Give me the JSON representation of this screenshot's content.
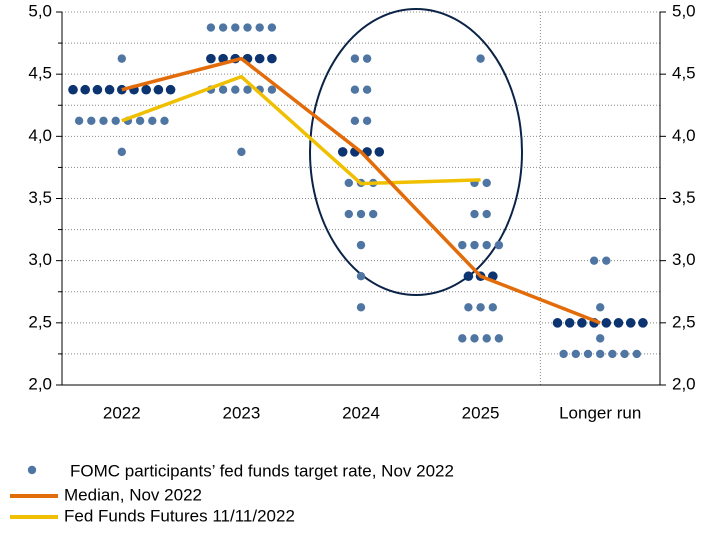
{
  "chart_data": {
    "type": "dot_plot",
    "categories": [
      "2022",
      "2023",
      "2024",
      "2025",
      "Longer run"
    ],
    "dots": [
      {
        "rates": [
          4.625,
          4.375,
          4.125,
          3.875
        ],
        "counts": [
          1,
          9,
          8,
          1
        ]
      },
      {
        "rates": [
          4.875,
          4.625,
          4.375,
          3.875
        ],
        "counts": [
          6,
          6,
          6,
          1
        ]
      },
      {
        "rates": [
          4.625,
          4.375,
          4.125,
          3.875,
          3.625,
          3.375,
          3.125,
          2.875,
          2.625
        ],
        "counts": [
          2,
          2,
          2,
          4,
          3,
          3,
          1,
          1,
          1
        ]
      },
      {
        "rates": [
          4.625,
          3.625,
          3.375,
          3.125,
          2.875,
          2.625,
          2.375
        ],
        "counts": [
          1,
          2,
          2,
          4,
          3,
          3,
          4
        ]
      },
      {
        "rates": [
          3.0,
          2.625,
          2.5,
          2.375,
          2.25
        ],
        "counts": [
          2,
          1,
          8,
          1,
          7
        ]
      }
    ],
    "dot_series": {
      "name": "FOMC participants’ fed funds target rate, Nov 2022",
      "color": "#4f76a3",
      "median_color": "#0b3470"
    },
    "series": [
      {
        "name": "Median, Nov 2022",
        "color": "#e36c0a",
        "values": [
          4.375,
          4.625,
          3.875,
          2.875,
          2.5
        ]
      },
      {
        "name": "Fed Funds Futures 11/11/2022",
        "color": "#f0c000",
        "values": [
          4.125,
          4.48,
          3.62,
          3.65,
          null
        ]
      }
    ],
    "ylim": [
      2,
      5
    ],
    "yticks": [
      {
        "value": 2,
        "label": "2,0"
      },
      {
        "value": 2.5,
        "label": "2,5"
      },
      {
        "value": 3,
        "label": "3,0"
      },
      {
        "value": 3.5,
        "label": "3,5"
      },
      {
        "value": 4,
        "label": "4,0"
      },
      {
        "value": 4.5,
        "label": "4,5"
      },
      {
        "value": 5,
        "label": "5,0"
      }
    ],
    "minor_yticks": [
      2.25,
      2.75,
      3.25,
      3.75,
      4.25,
      4.75
    ],
    "y2lim": [
      2,
      5
    ],
    "y2ticks": [
      {
        "value": 2,
        "label": "2,0"
      },
      {
        "value": 2.5,
        "label": "2,5"
      },
      {
        "value": 3,
        "label": "3,0"
      },
      {
        "value": 3.5,
        "label": "3,5"
      },
      {
        "value": 4,
        "label": "4,0"
      },
      {
        "value": 4.5,
        "label": "4,5"
      },
      {
        "value": 5,
        "label": "5,0"
      }
    ],
    "grid": true
  }
}
